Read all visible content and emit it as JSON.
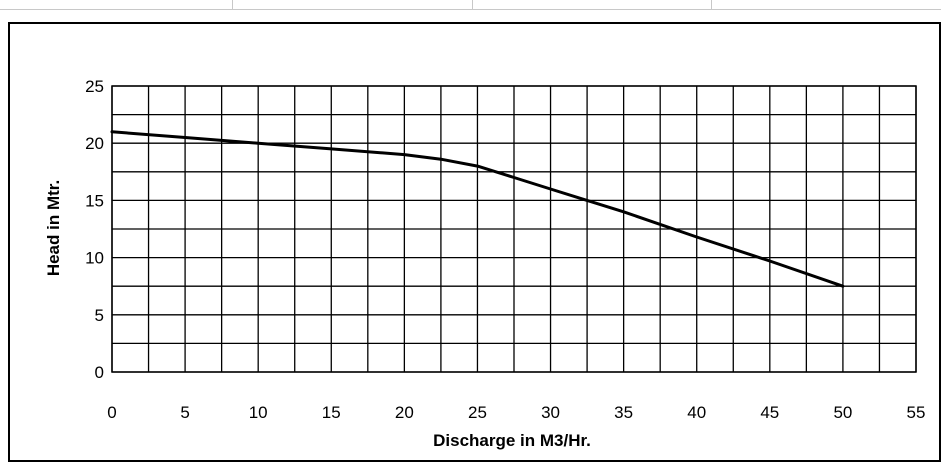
{
  "chart_data": {
    "type": "line",
    "title": "",
    "xlabel": "Discharge in M3/Hr.",
    "ylabel": "Head in Mtr.",
    "xlim": [
      0,
      55
    ],
    "ylim": [
      0,
      25
    ],
    "x_ticks": [
      "0",
      "5",
      "10",
      "15",
      "20",
      "25",
      "30",
      "35",
      "40",
      "45",
      "50",
      "55"
    ],
    "y_ticks": [
      "0",
      "5",
      "10",
      "15",
      "20",
      "25"
    ],
    "grid": true,
    "legend": "none",
    "series": [
      {
        "color": "#000000",
        "x": [
          0,
          5,
          10,
          15,
          20,
          22.5,
          25,
          27.5,
          30,
          32.5,
          35,
          40,
          45,
          50
        ],
        "y": [
          21,
          20.5,
          20,
          19.5,
          19,
          18.6,
          18,
          17,
          16,
          15,
          14,
          11.8,
          9.7,
          7.5
        ]
      }
    ]
  }
}
